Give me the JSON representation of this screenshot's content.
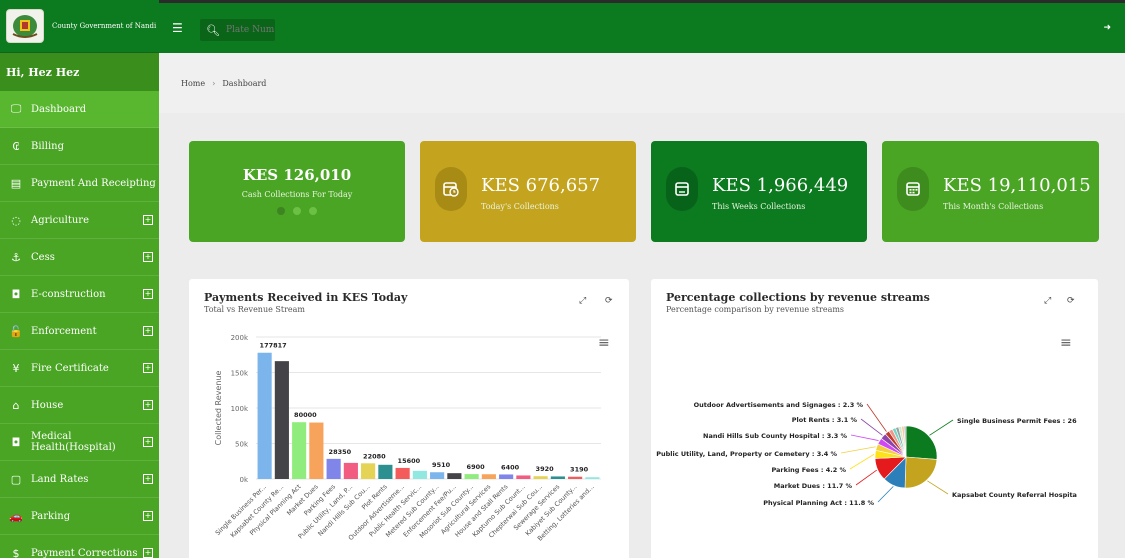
{
  "sidebar": {
    "org_name": "County Government of Nandi",
    "greeting": "Hi, Hez Hez",
    "items": [
      {
        "label": "Dashboard",
        "icon": "monitor-icon",
        "expandable": false
      },
      {
        "label": "Billing",
        "icon": "currency-icon",
        "expandable": false
      },
      {
        "label": "Payment And Receipting",
        "icon": "receipt-icon",
        "expandable": false
      },
      {
        "label": "Agriculture",
        "icon": "leaf-icon",
        "expandable": true
      },
      {
        "label": "Cess",
        "icon": "anchor-icon",
        "expandable": true
      },
      {
        "label": "E-construction",
        "icon": "camera-icon",
        "expandable": true
      },
      {
        "label": "Enforcement",
        "icon": "lock-icon",
        "expandable": true
      },
      {
        "label": "Fire Certificate",
        "icon": "fire-extinguisher-icon",
        "expandable": true
      },
      {
        "label": "House",
        "icon": "home-icon",
        "expandable": true
      },
      {
        "label": "Medical Health(Hospital)",
        "icon": "camera-icon",
        "expandable": true
      },
      {
        "label": "Land Rates",
        "icon": "square-icon",
        "expandable": true
      },
      {
        "label": "Parking",
        "icon": "car-icon",
        "expandable": true
      },
      {
        "label": "Payment Corrections",
        "icon": "dollar-icon",
        "expandable": true
      }
    ]
  },
  "topbar": {
    "search_placeholder": "Plate Num"
  },
  "breadcrumb": {
    "home": "Home",
    "separator": "›",
    "current": "Dashboard"
  },
  "cards": [
    {
      "amount": "KES 126,010",
      "label": "Cash Collections For Today",
      "color": "#4aa524"
    },
    {
      "amount": "KES 676,657",
      "label": "Today's Collections",
      "icon": "calendar-clock-icon",
      "color": "#c4a41e"
    },
    {
      "amount": "KES 1,966,449",
      "label": "This Weeks Collections",
      "icon": "calendar-icon",
      "color": "#0c7a1e"
    },
    {
      "amount": "KES 19,110,015",
      "label": "This Month's Collections",
      "icon": "calendar-grid-icon",
      "color": "#4aa524"
    }
  ],
  "bar_panel": {
    "title": "Payments Received in KES Today",
    "subtitle": "Total vs Revenue Stream"
  },
  "pie_panel": {
    "title": "Percentage collections by revenue streams",
    "subtitle": "Percentage comparison by revenue streams"
  },
  "chart_data": [
    {
      "type": "bar",
      "ylabel": "Collected Revenue",
      "ylim": [
        0,
        200000
      ],
      "yticks": [
        "0k",
        "50k",
        "100k",
        "150k",
        "200k"
      ],
      "categories": [
        "Single Business Per...",
        "Kapsabet County Re...",
        "Physical Planning Act",
        "Market Dues",
        "Parking Fees",
        "Public Utility, Land, P...",
        "Nandi Hills Sub Cou...",
        "Plot Rents",
        "Outdoor Advertiseme...",
        "Public Health Servic...",
        "Metered Sub County...",
        "Enforcement Fee/Pu...",
        "Mosoriot Sub County...",
        "Agricultural Services",
        "House and Stall Rents",
        "Kaptumo Sub Count...",
        "Chepterwai Sub Cou...",
        "Sewerage Services",
        "Kabiyet Sub County...",
        "Betting, Lotteries and..."
      ],
      "values": [
        177817,
        166000,
        80000,
        79500,
        28350,
        22700,
        22080,
        20000,
        15600,
        11500,
        9510,
        8200,
        6900,
        6700,
        6400,
        5000,
        3920,
        3600,
        3190,
        2500
      ],
      "data_labels": {
        "0": "177817",
        "2": "80000",
        "4": "28350",
        "6": "22080",
        "8": "15600",
        "10": "9510",
        "12": "6900",
        "14": "6400",
        "16": "3920",
        "18": "3190"
      },
      "colors": [
        "#7cb5ec",
        "#434348",
        "#90ed7d",
        "#f7a35c",
        "#8085e9",
        "#f15c80",
        "#e4d354",
        "#2b908f",
        "#f45b5b",
        "#91e8e1",
        "#7cb5ec",
        "#434348",
        "#90ed7d",
        "#f7a35c",
        "#8085e9",
        "#f15c80",
        "#e4d354",
        "#2b908f",
        "#f45b5b",
        "#91e8e1"
      ]
    },
    {
      "type": "pie",
      "slices": [
        {
          "label": "Single Business Permit Fees : 26",
          "value": 26,
          "color": "#0c7a1e"
        },
        {
          "label": "Kapsabet County Referral Hospita",
          "value": 24,
          "color": "#c4a41e"
        },
        {
          "label": "Physical Planning Act : 11.8 %",
          "value": 11.8,
          "color": "#2c7fb8"
        },
        {
          "label": "Market Dues : 11.7 %",
          "value": 11.7,
          "color": "#e41a1c"
        },
        {
          "label": "Parking Fees : 4.2 %",
          "value": 4.2,
          "color": "#ffe119"
        },
        {
          "label": "Public Utility, Land, Property or Cemetery : 3.4 %",
          "value": 3.4,
          "color": "#f4d03f"
        },
        {
          "label": "Nandi Hills Sub County Hospital : 3.3 %",
          "value": 3.3,
          "color": "#d147f5"
        },
        {
          "label": "Plot Rents : 3.1 %",
          "value": 3.1,
          "color": "#8e44ad"
        },
        {
          "label": "Outdoor Advertisements and Signages : 2.3 %",
          "value": 2.3,
          "color": "#c0392b"
        },
        {
          "label": "",
          "value": 2.0,
          "color": "#f1948a"
        },
        {
          "label": "",
          "value": 1.8,
          "color": "#76d7c4"
        },
        {
          "label": "",
          "value": 1.6,
          "color": "#95a5a6"
        },
        {
          "label": "",
          "value": 1.5,
          "color": "#d0e9c6"
        },
        {
          "label": "",
          "value": 1.3,
          "color": "#f5cba7"
        },
        {
          "label": "",
          "value": 1.0,
          "color": "#aab7b8"
        }
      ]
    }
  ]
}
